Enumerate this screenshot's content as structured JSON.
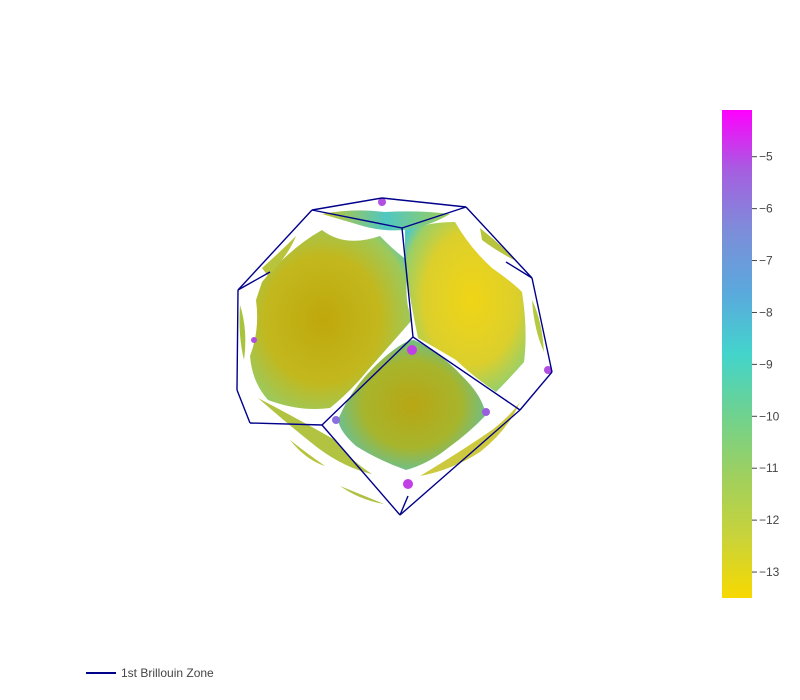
{
  "chart_data": {
    "type": "surface3d",
    "title": "",
    "colorbar": {
      "min": -13.5,
      "max": -4.1,
      "ticks": [
        -5,
        -6,
        -7,
        -8,
        -9,
        -10,
        -11,
        -12,
        -13
      ],
      "tick_labels": [
        "−5",
        "−6",
        "−7",
        "−8",
        "−9",
        "−10",
        "−11",
        "−12",
        "−13"
      ],
      "colorscale": [
        "#f7d900",
        "#c9d33a",
        "#9fd05e",
        "#6fd28f",
        "#43d4cc",
        "#5aa9dd",
        "#7c8ed9",
        "#a55fe0",
        "#ff00ff"
      ]
    },
    "legend": {
      "position": "bottom-left",
      "entries": [
        {
          "name": "1st Brillouin Zone",
          "color": "#00008b"
        }
      ]
    },
    "colors": {
      "zone_edges": "#00008b",
      "surface_main": "#c8b412",
      "surface_bright": "#efd21a",
      "background": "#ffffff"
    }
  }
}
